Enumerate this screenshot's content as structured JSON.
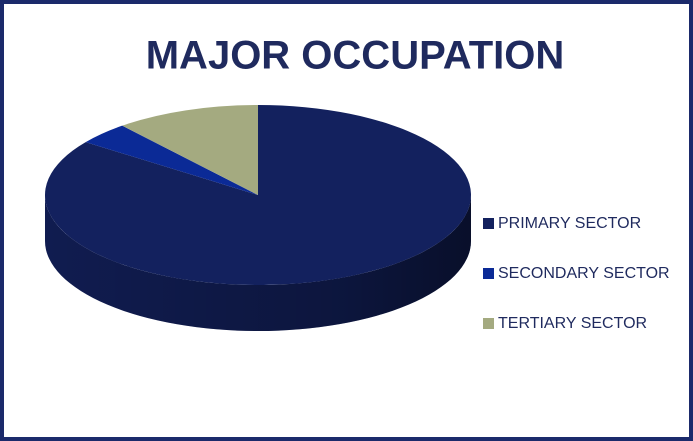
{
  "chart_data": {
    "type": "pie3d",
    "title": "MAJOR OCCUPATION",
    "categories": [
      "PRIMARY SECTOR",
      "SECONDARY SECTOR",
      "TERTIARY SECTOR"
    ],
    "values": [
      85,
      4,
      11
    ],
    "colors": [
      "#13215e",
      "#0b2a96",
      "#a4aa80"
    ],
    "legend": "right"
  }
}
